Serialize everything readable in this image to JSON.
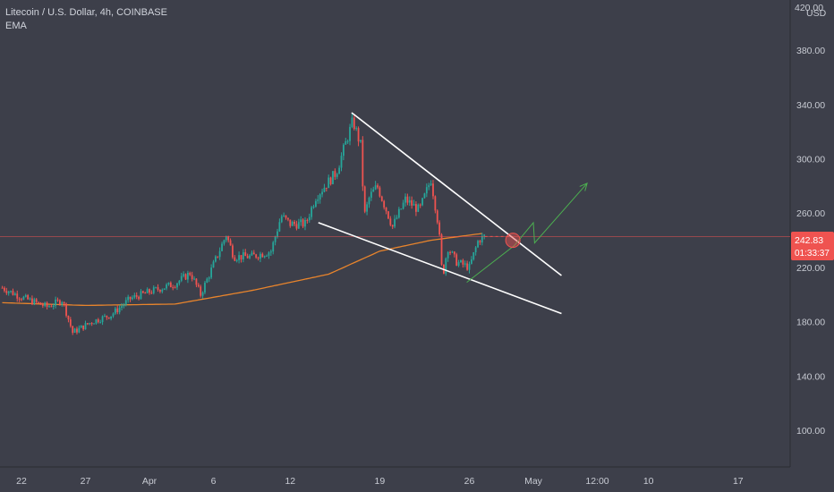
{
  "legend": {
    "symbol_line": "Litecoin / U.S. Dollar, 4h, COINBASE",
    "indicator": "EMA"
  },
  "axis": {
    "currency": "USD",
    "top_partial_label": "420.00"
  },
  "price_badge": {
    "price": "242.83",
    "countdown": "01:33:37"
  },
  "colors": {
    "background": "#3d3f4a",
    "up": "#26a69a",
    "down": "#ef5350",
    "ema": "#e8842c",
    "trendline": "#ffffff",
    "projection": "#4caf50",
    "price_line": "#ef5350",
    "axis_text": "#c8cbd3"
  },
  "chart_data": {
    "type": "candlestick",
    "symbol": "LTCUSD",
    "timeframe": "4h",
    "exchange": "COINBASE",
    "y_ticks": [
      100,
      140,
      180,
      220,
      260,
      300,
      340,
      380
    ],
    "y_tick_labels": [
      "100.00",
      "140.00",
      "180.00",
      "220.00",
      "260.00",
      "300.00",
      "340.00",
      "380.00"
    ],
    "ylim": [
      73,
      417
    ],
    "x_ticks": [
      {
        "label": "22",
        "day": 0
      },
      {
        "label": "27",
        "day": 5
      },
      {
        "label": "Apr",
        "day": 10
      },
      {
        "label": "6",
        "day": 15
      },
      {
        "label": "12",
        "day": 21
      },
      {
        "label": "19",
        "day": 28
      },
      {
        "label": "26",
        "day": 35
      },
      {
        "label": "May",
        "day": 40
      },
      {
        "label": "12:00",
        "day": 45
      },
      {
        "label": "10",
        "day": 49
      },
      {
        "label": "17",
        "day": 56
      }
    ],
    "current_price": 242.83,
    "ohlc_anchors": [
      {
        "day": -1.5,
        "close": 205
      },
      {
        "day": 0,
        "close": 198
      },
      {
        "day": 2,
        "close": 191
      },
      {
        "day": 3.2,
        "close": 196
      },
      {
        "day": 4,
        "close": 172
      },
      {
        "day": 5.5,
        "close": 180
      },
      {
        "day": 7,
        "close": 185
      },
      {
        "day": 8.5,
        "close": 197
      },
      {
        "day": 10,
        "close": 202
      },
      {
        "day": 12,
        "close": 208
      },
      {
        "day": 13.2,
        "close": 216
      },
      {
        "day": 14,
        "close": 200
      },
      {
        "day": 15,
        "close": 222
      },
      {
        "day": 16,
        "close": 244
      },
      {
        "day": 16.6,
        "close": 228
      },
      {
        "day": 18,
        "close": 228
      },
      {
        "day": 19.5,
        "close": 232
      },
      {
        "day": 20.3,
        "close": 258
      },
      {
        "day": 21,
        "close": 252
      },
      {
        "day": 22.2,
        "close": 252
      },
      {
        "day": 23,
        "close": 272
      },
      {
        "day": 24.6,
        "close": 290
      },
      {
        "day": 25.9,
        "close": 328
      },
      {
        "day": 26.5,
        "close": 310
      },
      {
        "day": 26.8,
        "close": 258
      },
      {
        "day": 27.2,
        "close": 272
      },
      {
        "day": 27.8,
        "close": 280
      },
      {
        "day": 29,
        "close": 250
      },
      {
        "day": 30,
        "close": 270
      },
      {
        "day": 31.1,
        "close": 262
      },
      {
        "day": 32,
        "close": 285
      },
      {
        "day": 32.6,
        "close": 250
      },
      {
        "day": 32.9,
        "close": 212
      },
      {
        "day": 33.3,
        "close": 235
      },
      {
        "day": 34,
        "close": 224
      },
      {
        "day": 35,
        "close": 220
      },
      {
        "day": 35.7,
        "close": 240
      },
      {
        "day": 36.2,
        "close": 243
      }
    ],
    "ema_points": [
      {
        "day": -1.5,
        "value": 194
      },
      {
        "day": 5,
        "value": 192
      },
      {
        "day": 12,
        "value": 193
      },
      {
        "day": 18,
        "value": 203
      },
      {
        "day": 24,
        "value": 215
      },
      {
        "day": 28,
        "value": 232
      },
      {
        "day": 32,
        "value": 240
      },
      {
        "day": 36,
        "value": 245
      }
    ],
    "annotations": {
      "upper_trendline": [
        {
          "day": 25.8,
          "price": 334
        },
        {
          "day": 42.2,
          "price": 214
        }
      ],
      "lower_trendline": [
        {
          "day": 23.2,
          "price": 253
        },
        {
          "day": 42.2,
          "price": 186
        }
      ],
      "projection_path": [
        {
          "day": 34.8,
          "price": 209
        },
        {
          "day": 38.5,
          "price": 236
        },
        {
          "day": 40.0,
          "price": 253
        },
        {
          "day": 40.1,
          "price": 238
        },
        {
          "day": 44.2,
          "price": 282
        }
      ],
      "dashed_forecast": [
        {
          "day": 36.2,
          "price": 242.8
        },
        {
          "day": 38.2,
          "price": 242.8
        }
      ],
      "breakout_circle": {
        "day": 38.4,
        "price": 240
      }
    }
  }
}
